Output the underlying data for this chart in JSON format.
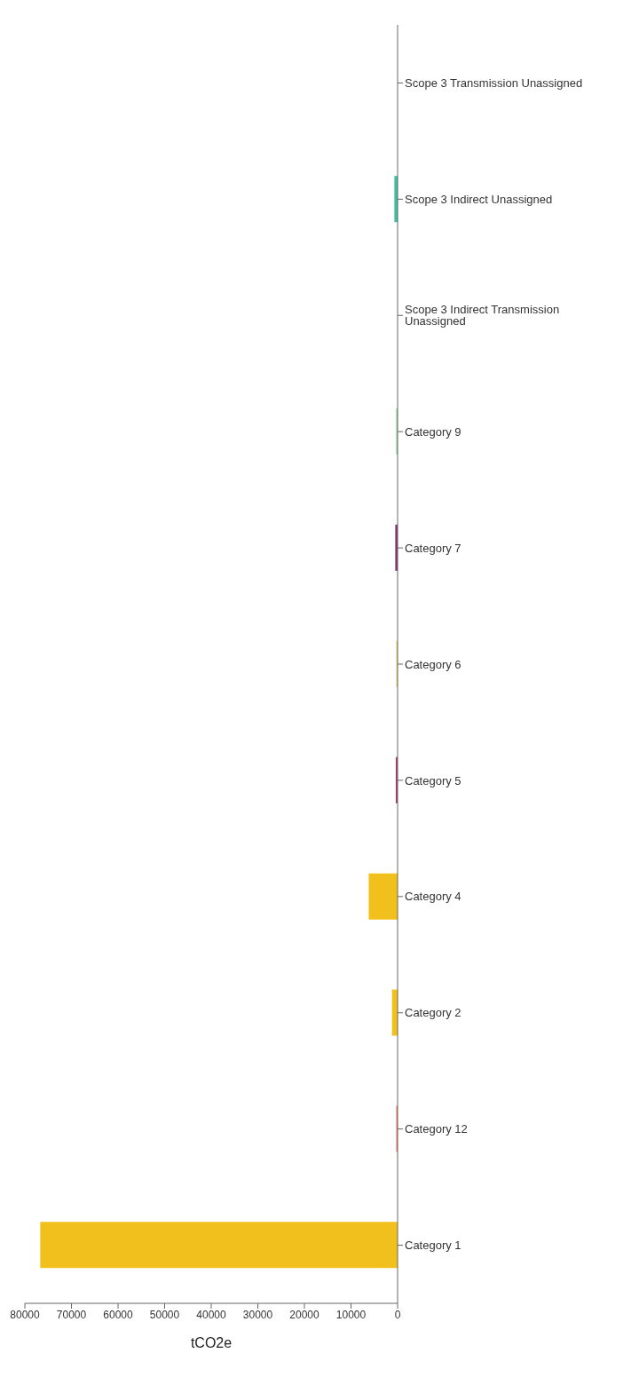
{
  "chart_data": {
    "type": "bar",
    "orientation": "horizontal",
    "xlabel": "tCO2e",
    "categories": [
      "Scope 3 Transmission Unassigned",
      "Scope 3 Indirect Unassigned",
      "Scope 3 Indirect Transmission Unassigned",
      "Category 9",
      "Category 7",
      "Category 6",
      "Category 5",
      "Category 4",
      "Category 2",
      "Category 12",
      "Category 1"
    ],
    "values": [
      0,
      700,
      0,
      300,
      500,
      300,
      400,
      6200,
      1200,
      300,
      76700
    ],
    "colors": [
      "#40c0a0",
      "#40c0a0",
      "#90d890",
      "#90d890",
      "#8a3070",
      "#e8d870",
      "#a0406a",
      "#f2c01c",
      "#f2c01c",
      "#f08060",
      "#f2c01c"
    ],
    "xlim": [
      80000,
      0
    ],
    "xticks": [
      80000,
      70000,
      60000,
      50000,
      40000,
      30000,
      20000,
      10000,
      0
    ],
    "grid": false
  }
}
